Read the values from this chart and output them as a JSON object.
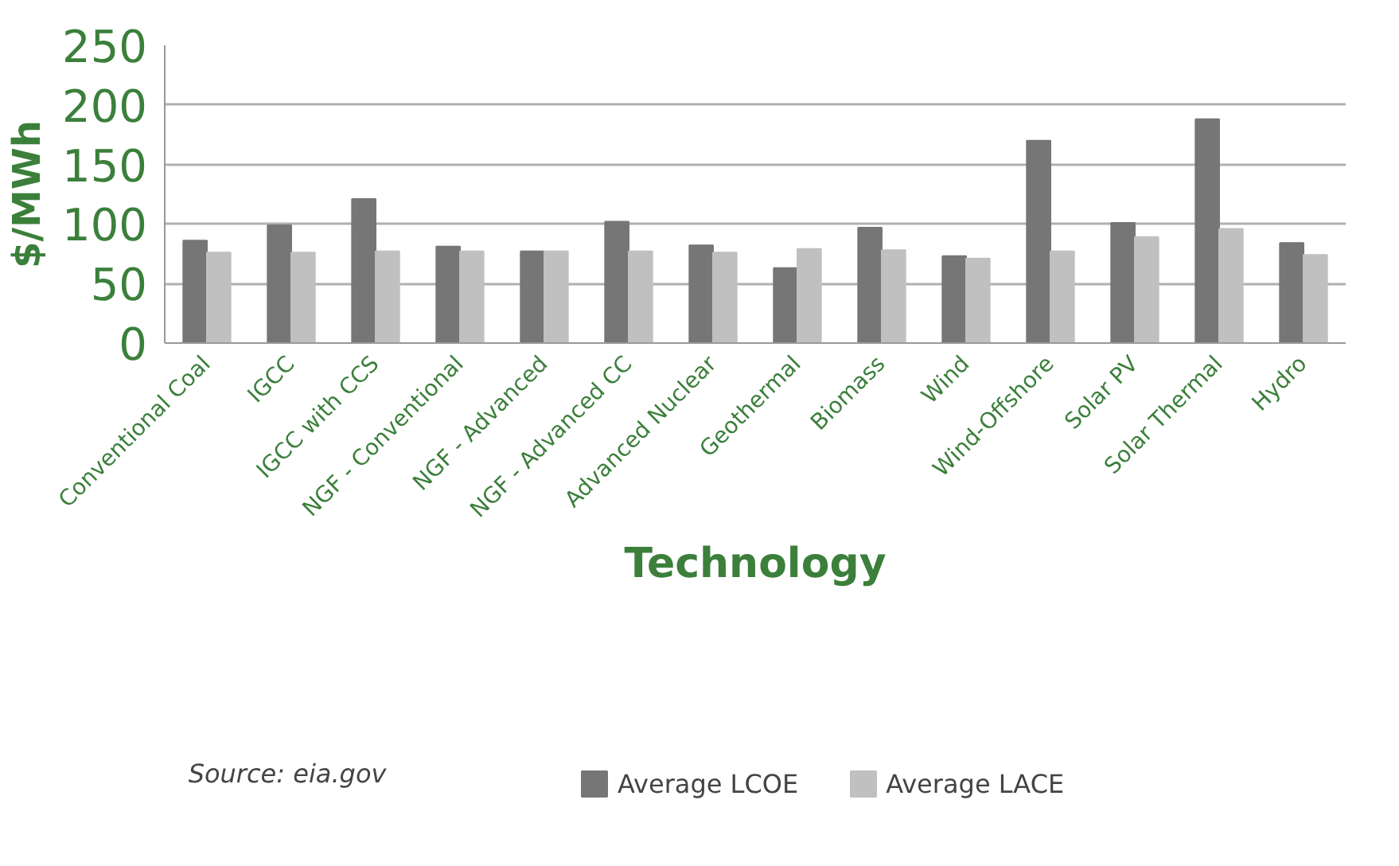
{
  "chart_data": {
    "type": "bar",
    "xlabel": "Technology",
    "ylabel": "$/MWh",
    "categories": [
      "Conventional Coal",
      "IGCC",
      "IGCC with CCS",
      "NGF - Conventional",
      "NGF - Advanced",
      "NGF - Advanced CC",
      "Advanced Nuclear",
      "Geothermal",
      "Biomass",
      "Wind",
      "Wind-Offshore",
      "Solar PV",
      "Solar Thermal",
      "Hydro"
    ],
    "series": [
      {
        "name": "Average LCOE",
        "color": "#767676",
        "values": [
          86,
          99,
          121,
          81,
          77,
          102,
          82,
          63,
          97,
          73,
          170,
          101,
          188,
          84
        ]
      },
      {
        "name": "Average LACE",
        "color": "#c0c0c0",
        "values": [
          76,
          76,
          77,
          77,
          77,
          77,
          76,
          79,
          78,
          71,
          77,
          89,
          96,
          74
        ]
      }
    ],
    "ylim": [
      0,
      250
    ],
    "yticks": [
      0,
      50,
      100,
      150,
      200,
      250
    ],
    "grid": "y",
    "legend": "bottom",
    "annotations": [
      "Source: eia.gov"
    ]
  }
}
